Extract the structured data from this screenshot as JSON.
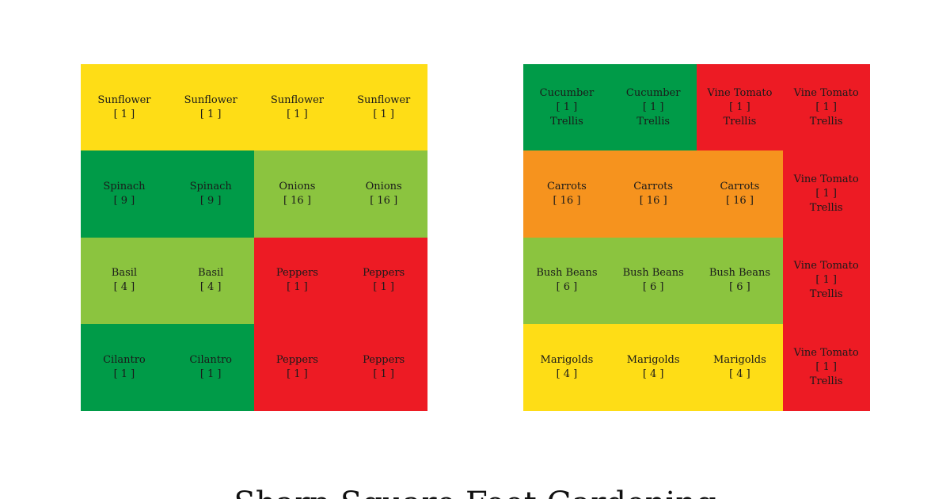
{
  "colors": {
    "yellow": "#fedd16",
    "dark_green": "#009b48",
    "light_green": "#8bc43f",
    "red": "#ed1b24",
    "orange": "#f6931e"
  },
  "left_bed": {
    "cells": [
      {
        "col": 0,
        "row": 0,
        "plant": "Sunflower",
        "count": "[ 1 ]",
        "support": "",
        "color": "yellow"
      },
      {
        "col": 1,
        "row": 0,
        "plant": "Sunflower",
        "count": "[ 1 ]",
        "support": "",
        "color": "yellow"
      },
      {
        "col": 2,
        "row": 0,
        "plant": "Sunflower",
        "count": "[ 1 ]",
        "support": "",
        "color": "yellow"
      },
      {
        "col": 3,
        "row": 0,
        "plant": "Sunflower",
        "count": "[ 1 ]",
        "support": "",
        "color": "yellow"
      },
      {
        "col": 0,
        "row": 1,
        "plant": "Spinach",
        "count": "[ 9 ]",
        "support": "",
        "color": "dark_green"
      },
      {
        "col": 1,
        "row": 1,
        "plant": "Spinach",
        "count": "[ 9 ]",
        "support": "",
        "color": "dark_green"
      },
      {
        "col": 2,
        "row": 1,
        "plant": "Onions",
        "count": "[ 16 ]",
        "support": "",
        "color": "light_green"
      },
      {
        "col": 3,
        "row": 1,
        "plant": "Onions",
        "count": "[ 16 ]",
        "support": "",
        "color": "light_green"
      },
      {
        "col": 0,
        "row": 2,
        "plant": "Basil",
        "count": "[ 4 ]",
        "support": "",
        "color": "light_green"
      },
      {
        "col": 1,
        "row": 2,
        "plant": "Basil",
        "count": "[ 4 ]",
        "support": "",
        "color": "light_green"
      },
      {
        "col": 2,
        "row": 2,
        "plant": "Peppers",
        "count": "[ 1 ]",
        "support": "",
        "color": "red"
      },
      {
        "col": 3,
        "row": 2,
        "plant": "Peppers",
        "count": "[ 1 ]",
        "support": "",
        "color": "red"
      },
      {
        "col": 0,
        "row": 3,
        "plant": "Cilantro",
        "count": "[ 1 ]",
        "support": "",
        "color": "dark_green"
      },
      {
        "col": 1,
        "row": 3,
        "plant": "Cilantro",
        "count": "[ 1 ]",
        "support": "",
        "color": "dark_green"
      },
      {
        "col": 2,
        "row": 3,
        "plant": "Peppers",
        "count": "[ 1 ]",
        "support": "",
        "color": "red"
      },
      {
        "col": 3,
        "row": 3,
        "plant": "Peppers",
        "count": "[ 1 ]",
        "support": "",
        "color": "red"
      }
    ]
  },
  "right_bed": {
    "cells": [
      {
        "col": 0,
        "row": 0,
        "plant": "Cucumber",
        "count": "[ 1 ]",
        "support": "Trellis",
        "color": "dark_green"
      },
      {
        "col": 1,
        "row": 0,
        "plant": "Cucumber",
        "count": "[ 1 ]",
        "support": "Trellis",
        "color": "dark_green"
      },
      {
        "col": 2,
        "row": 0,
        "plant": "Vine Tomato",
        "count": "[ 1 ]",
        "support": "Trellis",
        "color": "red"
      },
      {
        "col": 3,
        "row": 0,
        "plant": "Vine Tomato",
        "count": "[ 1 ]",
        "support": "Trellis",
        "color": "red"
      },
      {
        "col": 0,
        "row": 1,
        "plant": "Carrots",
        "count": "[ 16 ]",
        "support": "",
        "color": "orange"
      },
      {
        "col": 1,
        "row": 1,
        "plant": "Carrots",
        "count": "[ 16 ]",
        "support": "",
        "color": "orange"
      },
      {
        "col": 2,
        "row": 1,
        "plant": "Carrots",
        "count": "[ 16 ]",
        "support": "",
        "color": "orange"
      },
      {
        "col": 3,
        "row": 1,
        "plant": "Vine Tomato",
        "count": "[ 1 ]",
        "support": "Trellis",
        "color": "red"
      },
      {
        "col": 0,
        "row": 2,
        "plant": "Bush Beans",
        "count": "[ 6 ]",
        "support": "",
        "color": "light_green"
      },
      {
        "col": 1,
        "row": 2,
        "plant": "Bush Beans",
        "count": "[ 6 ]",
        "support": "",
        "color": "light_green"
      },
      {
        "col": 2,
        "row": 2,
        "plant": "Bush Beans",
        "count": "[ 6 ]",
        "support": "",
        "color": "light_green"
      },
      {
        "col": 3,
        "row": 2,
        "plant": "Vine Tomato",
        "count": "[ 1 ]",
        "support": "Trellis",
        "color": "red"
      },
      {
        "col": 0,
        "row": 3,
        "plant": "Marigolds",
        "count": "[ 4 ]",
        "support": "",
        "color": "yellow"
      },
      {
        "col": 1,
        "row": 3,
        "plant": "Marigolds",
        "count": "[ 4 ]",
        "support": "",
        "color": "yellow"
      },
      {
        "col": 2,
        "row": 3,
        "plant": "Marigolds",
        "count": "[ 4 ]",
        "support": "",
        "color": "yellow"
      },
      {
        "col": 3,
        "row": 3,
        "plant": "Vine Tomato",
        "count": "[ 1 ]",
        "support": "Trellis",
        "color": "red"
      }
    ]
  },
  "footer": {
    "title": "Sharp Square Foot Gardening"
  }
}
